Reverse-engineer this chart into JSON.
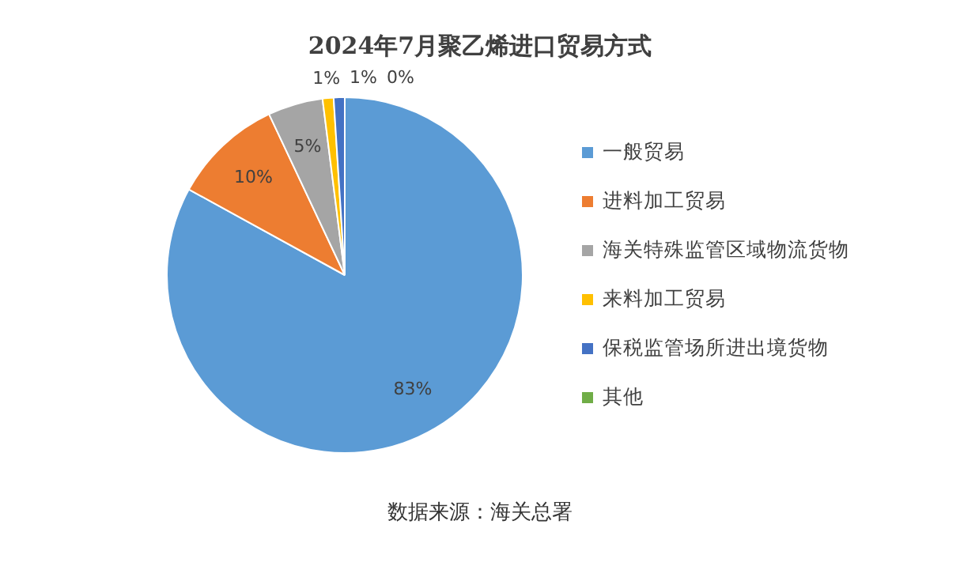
{
  "chart_data": {
    "type": "pie",
    "title": "2024年7月聚乙烯进口贸易方式",
    "categories": [
      "一般贸易",
      "进料加工贸易",
      "海关特殊监管区域物流货物",
      "来料加工贸易",
      "保税监管场所进出境货物",
      "其他"
    ],
    "values": [
      83,
      10,
      5,
      1,
      1,
      0
    ],
    "colors": [
      "#5b9bd5",
      "#ed7d31",
      "#a5a5a5",
      "#ffc000",
      "#4472c4",
      "#70ad47"
    ],
    "value_labels": [
      "83%",
      "10%",
      "5%",
      "1%",
      "1%",
      "0%"
    ],
    "legend": "right",
    "annotations": [
      "数据来源：海关总署"
    ]
  }
}
